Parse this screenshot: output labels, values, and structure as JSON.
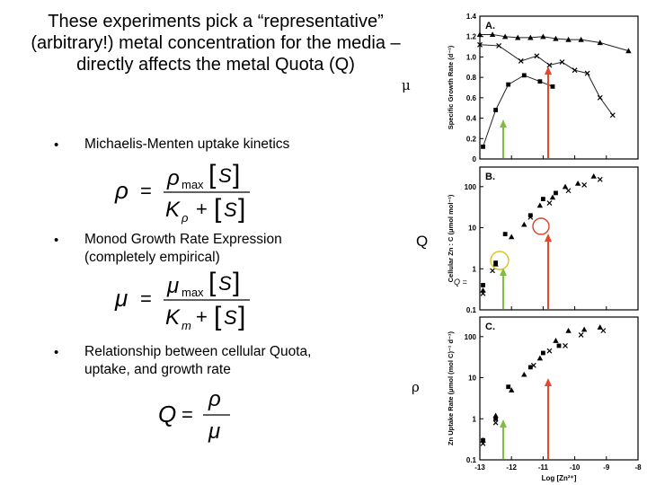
{
  "slide": {
    "title": "These experiments pick a “representative” (arbitrary!) metal concentration for the media – directly affects the metal Quota (Q)",
    "bullets": [
      {
        "marker": "•",
        "text": "Michaelis-Menten uptake kinetics"
      },
      {
        "marker": "•",
        "text": "Monod Growth Rate Expression (completely empirical)"
      },
      {
        "marker": "•",
        "text": "Relationship between cellular Quota, uptake, and growth rate"
      }
    ],
    "symbols": {
      "mu": "μ",
      "Q": "Q",
      "rho": "ρ",
      "q_small": "Q ="
    },
    "equations": {
      "rho": {
        "lhs": "ρ",
        "eq": "=",
        "num_sym": "ρ",
        "num_sub": "max",
        "bracket_var": "S",
        "den_K": "K",
        "den_sub": "ρ",
        "plus": "+"
      },
      "mu": {
        "lhs": "μ",
        "eq": "=",
        "num_sym": "μ",
        "num_sub": "max",
        "bracket_var": "S",
        "den_K": "K",
        "den_sub": "m",
        "plus": "+"
      },
      "Q": {
        "lhs": "Q",
        "eq": "=",
        "num": "ρ",
        "den": "μ"
      }
    }
  },
  "colors": {
    "green_arrow": "#7fbf3f",
    "red_arrow": "#e04a2a",
    "circle_red": "#d9412b",
    "circle_yellow": "#e0c020"
  },
  "chart_data": [
    {
      "type": "line",
      "panel_label": "A.",
      "ylabel": "Specific Growth Rate (d⁻¹)",
      "yticks": [
        "0",
        "0.2",
        "0.4",
        "0.6",
        "0.8",
        "1.0",
        "1.2",
        "1.4"
      ],
      "ylim": [
        0,
        1.4
      ],
      "xlim": [
        -13,
        -8
      ],
      "series": [
        {
          "marker": "triangle",
          "x": [
            -13,
            -12.6,
            -12.2,
            -11.8,
            -11.4,
            -11.0,
            -10.6,
            -10.2,
            -9.8,
            -9.2,
            -8.3
          ],
          "y": [
            1.22,
            1.22,
            1.2,
            1.19,
            1.19,
            1.2,
            1.18,
            1.17,
            1.17,
            1.14,
            1.06
          ]
        },
        {
          "marker": "cross",
          "x": [
            -13,
            -12.4,
            -11.7,
            -11.2,
            -10.8,
            -10.4,
            -10.0,
            -9.6,
            -9.2,
            -8.8
          ],
          "y": [
            1.12,
            1.11,
            0.96,
            1.01,
            0.92,
            0.95,
            0.87,
            0.84,
            0.6,
            0.43
          ]
        },
        {
          "marker": "square",
          "x": [
            -12.9,
            -12.5,
            -12.1,
            -11.6,
            -11.1,
            -10.7
          ],
          "y": [
            0.12,
            0.48,
            0.73,
            0.82,
            0.76,
            0.71
          ]
        }
      ]
    },
    {
      "type": "scatter",
      "panel_label": "B.",
      "ylabel": "Cellular Zn : C (μmol mol⁻¹)",
      "yticks": [
        "0.1",
        "1",
        "10",
        "100"
      ],
      "yscale": "log",
      "ylim": [
        0.1,
        300
      ],
      "xlim": [
        -13,
        -8
      ],
      "series": [
        {
          "marker": "triangle",
          "x": [
            -12.9,
            -12.5,
            -12.0,
            -11.6,
            -11.1,
            -10.7,
            -10.3,
            -9.9,
            -9.4
          ],
          "y": [
            0.3,
            1.3,
            6,
            12,
            35,
            55,
            100,
            120,
            180
          ]
        },
        {
          "marker": "cross",
          "x": [
            -12.9,
            -12.6,
            -11.4,
            -10.8,
            -10.2,
            -9.7,
            -9.2
          ],
          "y": [
            0.25,
            0.9,
            18,
            40,
            80,
            110,
            150
          ]
        },
        {
          "marker": "square",
          "x": [
            -12.9,
            -12.5,
            -12.2,
            -11.4,
            -11.0,
            -10.6
          ],
          "y": [
            0.4,
            1.4,
            7,
            20,
            50,
            70
          ]
        }
      ]
    },
    {
      "type": "scatter",
      "panel_label": "C.",
      "ylabel": "Zn Uptake Rate (μmol (mol C)⁻¹ d⁻¹)",
      "xlabel": "Log [Zn²⁺]",
      "yticks": [
        "0.1",
        "1",
        "10",
        "100"
      ],
      "xticks": [
        "-13",
        "-12",
        "-11",
        "-10",
        "-9",
        "-8"
      ],
      "yscale": "log",
      "ylim": [
        0.1,
        300
      ],
      "xlim": [
        -13,
        -8
      ],
      "series": [
        {
          "marker": "triangle",
          "x": [
            -12.9,
            -12.5,
            -12.0,
            -11.6,
            -11.1,
            -10.6,
            -10.2,
            -9.7,
            -9.2
          ],
          "y": [
            0.3,
            1.2,
            5,
            12,
            30,
            80,
            140,
            150,
            170
          ]
        },
        {
          "marker": "cross",
          "x": [
            -12.9,
            -12.5,
            -11.3,
            -10.8,
            -10.3,
            -9.8,
            -9.1
          ],
          "y": [
            0.25,
            0.8,
            20,
            45,
            60,
            110,
            140
          ]
        },
        {
          "marker": "square",
          "x": [
            -12.9,
            -12.5,
            -12.1,
            -11.4,
            -11.0,
            -10.5
          ],
          "y": [
            0.3,
            1.0,
            6,
            18,
            40,
            60
          ]
        }
      ]
    }
  ]
}
